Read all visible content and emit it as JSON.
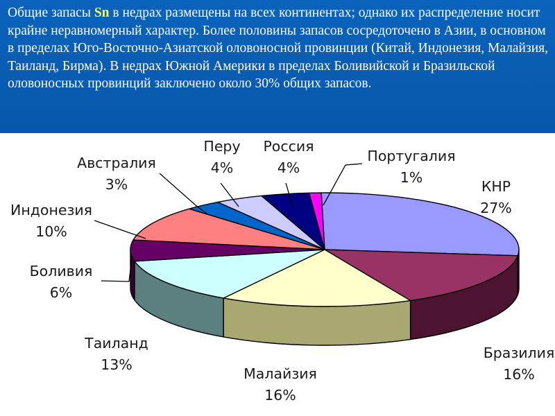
{
  "header": {
    "text_before": "Общие запасы ",
    "highlight": "Sn",
    "text_after": " в недрах размещены на всех континентах; однако их распределение носит крайне неравномерный характер. Более половины запасов сосредоточено в Азии, в основном в пределах Юго-Восточно-Азиатской оловоносной провинции (Китай, Индонезия, Малайзия, Таиланд, Бирма). В недрах Южной Америки в пределах Боливийской и Бразильской оловоносных провинций заключено около 30% общих запасов.",
    "background_color": "#0a5fb4",
    "text_color": "#ffffff",
    "highlight_color": "#ffff66"
  },
  "chart_data": {
    "type": "pie",
    "style": "3d",
    "unit": "%",
    "slices": [
      {
        "label": "КНР",
        "value": 27,
        "value_label": "27%",
        "color": "#9999ff",
        "side_color": "#5c5cb0"
      },
      {
        "label": "Бразилия",
        "value": 16,
        "value_label": "16%",
        "color": "#993366",
        "side_color": "#4c1430"
      },
      {
        "label": "Малайзия",
        "value": 16,
        "value_label": "16%",
        "color": "#ffffcc",
        "side_color": "#a8a870"
      },
      {
        "label": "Таиланд",
        "value": 13,
        "value_label": "13%",
        "color": "#ccffff",
        "side_color": "#5c7f7f"
      },
      {
        "label": "Боливия",
        "value": 6,
        "value_label": "6%",
        "color": "#660066",
        "side_color": "#330033"
      },
      {
        "label": "Индонезия",
        "value": 10,
        "value_label": "10%",
        "color": "#ff8080",
        "side_color": "#a04848"
      },
      {
        "label": "Австралия",
        "value": 3,
        "value_label": "3%",
        "color": "#0066cc",
        "side_color": "#003a7a"
      },
      {
        "label": "Перу",
        "value": 4,
        "value_label": "4%",
        "color": "#ccccff",
        "side_color": "#7a7aa8"
      },
      {
        "label": "Россия",
        "value": 4,
        "value_label": "4%",
        "color": "#000080",
        "side_color": "#000040"
      },
      {
        "label": "Португалия",
        "value": 1,
        "value_label": "1%",
        "color": "#ff00ff",
        "side_color": "#990099"
      }
    ]
  }
}
